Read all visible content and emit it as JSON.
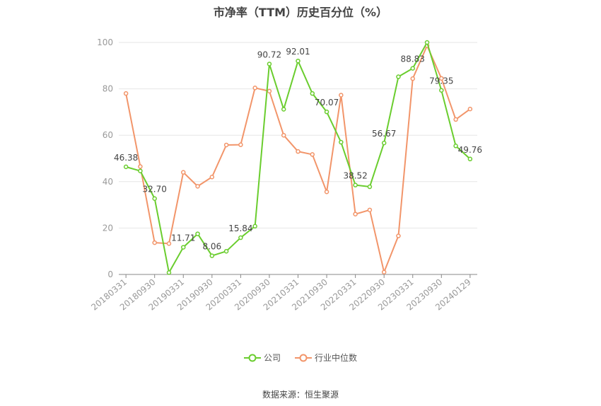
{
  "chart_data": {
    "type": "line",
    "title": "市净率（TTM）历史百分位（%）",
    "x": [
      "20180331",
      "20180630",
      "20180930",
      "20181231",
      "20190331",
      "20190630",
      "20190930",
      "20191231",
      "20200331",
      "20200630",
      "20200930",
      "20201231",
      "20210331",
      "20210630",
      "20210930",
      "20211231",
      "20220331",
      "20220630",
      "20220930",
      "20221231",
      "20230331",
      "20230630",
      "20230930",
      "20231231",
      "20240129"
    ],
    "x_tick_labels": [
      "20180331",
      "20180930",
      "20190331",
      "20190930",
      "20200331",
      "20200930",
      "20210331",
      "20210930",
      "20220331",
      "20220930",
      "20230331",
      "20230930",
      "20240129"
    ],
    "ylim": [
      0,
      100
    ],
    "y_ticks": [
      0,
      20,
      40,
      60,
      80,
      100
    ],
    "grid": true,
    "legend_position": "bottom",
    "series": [
      {
        "name": "公司",
        "color": "#6acd2e",
        "values": [
          46.38,
          44.6,
          32.7,
          0.8,
          11.71,
          17.5,
          8.06,
          10.0,
          15.84,
          20.8,
          90.72,
          71.2,
          92.01,
          78.0,
          70.07,
          57.0,
          38.52,
          37.8,
          56.67,
          85.2,
          88.83,
          100,
          79.35,
          55.4,
          49.76
        ],
        "labels": {
          "0": "46.38",
          "2": "32.70",
          "4": "11.71",
          "6": "8.06",
          "8": "15.84",
          "10": "90.72",
          "12": "92.01",
          "14": "70.07",
          "16": "38.52",
          "18": "56.67",
          "20": "88.83",
          "22": "79.35",
          "24": "49.76"
        }
      },
      {
        "name": "行业中位数",
        "color": "#f2956a",
        "values": [
          78.0,
          46.5,
          13.7,
          13.3,
          44.0,
          38.0,
          42.0,
          55.8,
          55.9,
          80.4,
          79.0,
          60.0,
          53.0,
          51.7,
          35.6,
          77.3,
          26.0,
          27.8,
          1.0,
          16.6,
          84.4,
          98.6,
          84.5,
          66.8,
          71.3
        ]
      }
    ]
  },
  "footer": {
    "source": "数据来源：恒生聚源"
  }
}
